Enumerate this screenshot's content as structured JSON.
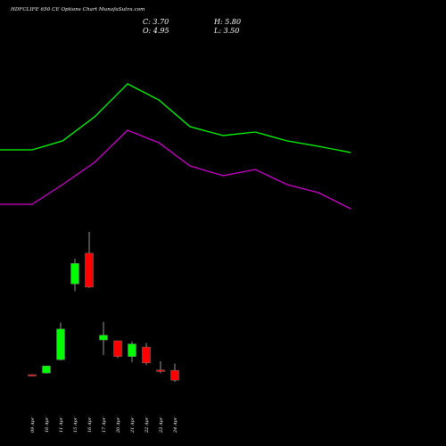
{
  "header": {
    "title": "HDFCLIFE 650  CE Options  Chart MunafaSutra.com",
    "close": "C: 3.70",
    "open": "O: 4.95",
    "high": "H: 5.80",
    "low": "L: 3.50"
  },
  "colors": {
    "background": "#000000",
    "up": "#00ff00",
    "down": "#ff0000",
    "line_upper": "#00ff00",
    "line_lower": "#cc00cc",
    "text": "#ffffff"
  },
  "chart_data": {
    "type": "candlestick",
    "categories": [
      "09 Apr",
      "10 Apr",
      "11 Apr",
      "15 Apr",
      "16 Apr",
      "17 Apr",
      "20 Apr",
      "21 Apr",
      "22 Apr",
      "23 Apr",
      "24 Apr"
    ],
    "candles": [
      {
        "date": "09 Apr",
        "open": 4.4,
        "high": 4.45,
        "low": 4.35,
        "close": 4.35,
        "direction": "down"
      },
      {
        "date": "10 Apr",
        "open": 4.6,
        "high": 5.5,
        "low": 4.55,
        "close": 5.5,
        "direction": "up"
      },
      {
        "date": "11 Apr",
        "open": 6.3,
        "high": 11.0,
        "low": 6.2,
        "close": 10.2,
        "direction": "up"
      },
      {
        "date": "15 Apr",
        "open": 15.9,
        "high": 19.1,
        "low": 15.0,
        "close": 18.5,
        "direction": "up"
      },
      {
        "date": "16 Apr",
        "open": 19.8,
        "high": 22.5,
        "low": 15.4,
        "close": 15.5,
        "direction": "down"
      },
      {
        "date": "17 Apr",
        "open": 8.8,
        "high": 11.1,
        "low": 6.9,
        "close": 9.4,
        "direction": "up"
      },
      {
        "date": "20 Apr",
        "open": 8.7,
        "high": 8.7,
        "low": 6.5,
        "close": 6.7,
        "direction": "down"
      },
      {
        "date": "21 Apr",
        "open": 6.7,
        "high": 8.6,
        "low": 6.0,
        "close": 8.3,
        "direction": "up"
      },
      {
        "date": "22 Apr",
        "open": 7.9,
        "high": 8.4,
        "low": 5.6,
        "close": 5.9,
        "direction": "down"
      },
      {
        "date": "23 Apr",
        "open": 5.0,
        "high": 6.1,
        "low": 4.6,
        "close": 4.8,
        "direction": "down"
      },
      {
        "date": "24 Apr",
        "open": 4.95,
        "high": 5.8,
        "low": 3.5,
        "close": 3.7,
        "direction": "down"
      }
    ],
    "indicator_lines": [
      {
        "color": "#00ff00",
        "values": [
          null,
          null,
          70,
          103,
          133,
          112,
          92,
          81,
          87,
          76,
          70
        ]
      },
      {
        "color": "#cc00cc",
        "values": [
          null,
          null,
          80,
          110,
          143,
          120,
          96,
          84,
          90,
          79,
          72
        ]
      }
    ],
    "grid": false,
    "legend": "none"
  }
}
